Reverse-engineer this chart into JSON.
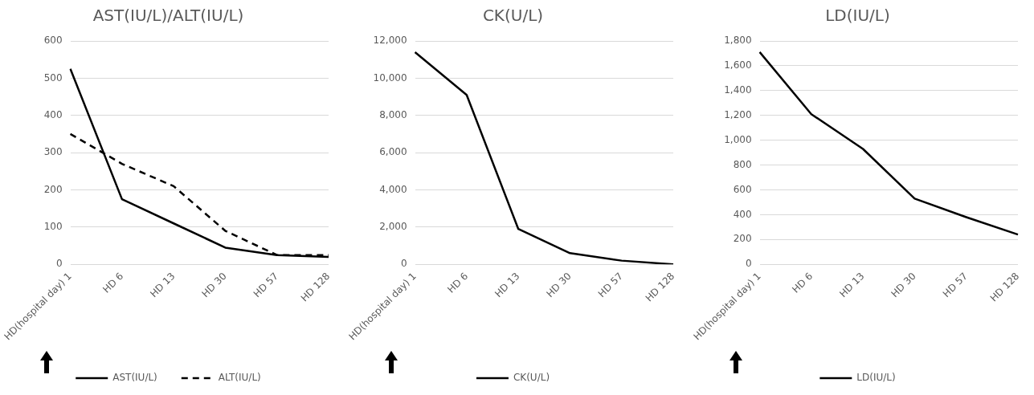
{
  "chart_data": [
    {
      "type": "line",
      "title": "AST(IU/L)/ALT(IU/L)",
      "categories": [
        "HD(hospital day) 1",
        "HD 6",
        "HD 13",
        "HD 30",
        "HD 57",
        "HD 128"
      ],
      "series": [
        {
          "name": "AST(IU/L)",
          "color": "#000000",
          "line_style": "solid",
          "values": [
            525,
            175,
            110,
            45,
            25,
            20
          ]
        },
        {
          "name": "ALT(IU/L)",
          "color": "#000000",
          "line_style": "dashed",
          "values": [
            350,
            270,
            210,
            90,
            25,
            25
          ]
        }
      ],
      "ylim": [
        0,
        600
      ],
      "yticks": [
        0,
        100,
        200,
        300,
        400,
        500,
        600
      ],
      "grid": "y",
      "legend": "bottom",
      "marker": "none"
    },
    {
      "type": "line",
      "title": "CK(U/L)",
      "categories": [
        "HD(hospital day) 1",
        "HD 6",
        "HD 13",
        "HD 30",
        "HD 57",
        "HD 128"
      ],
      "series": [
        {
          "name": "CK(U/L)",
          "color": "#000000",
          "line_style": "solid",
          "values": [
            11400,
            9100,
            1900,
            600,
            200,
            0
          ]
        }
      ],
      "ylim": [
        0,
        12000
      ],
      "yticks": [
        {
          "value": 0,
          "label": "0"
        },
        {
          "value": 2000,
          "label": "2,000"
        },
        {
          "value": 4000,
          "label": "4,000"
        },
        {
          "value": 6000,
          "label": "6,000"
        },
        {
          "value": 8000,
          "label": "8,000"
        },
        {
          "value": 10000,
          "label": "10,000"
        },
        {
          "value": 12000,
          "label": "12,000"
        }
      ],
      "grid": "y",
      "legend": "bottom",
      "marker": "none"
    },
    {
      "type": "line",
      "title": "LD(IU/L)",
      "categories": [
        "HD(hospital day) 1",
        "HD 6",
        "HD 13",
        "HD 30",
        "HD 57",
        "HD 128"
      ],
      "series": [
        {
          "name": "LD(IU/L)",
          "color": "#000000",
          "line_style": "solid",
          "values": [
            1710,
            1210,
            930,
            530,
            380,
            240
          ]
        }
      ],
      "ylim": [
        0,
        1800
      ],
      "yticks": [
        0,
        200,
        400,
        {
          "value": 600,
          "label": "600"
        },
        800,
        {
          "value": 1000,
          "label": "1,000"
        },
        {
          "value": 1200,
          "label": "1,200"
        },
        {
          "value": 1400,
          "label": "1,400"
        },
        {
          "value": 1600,
          "label": "1,600"
        },
        {
          "value": 1800,
          "label": "1,800"
        }
      ],
      "grid": "y",
      "legend": "bottom",
      "marker": "none"
    }
  ]
}
